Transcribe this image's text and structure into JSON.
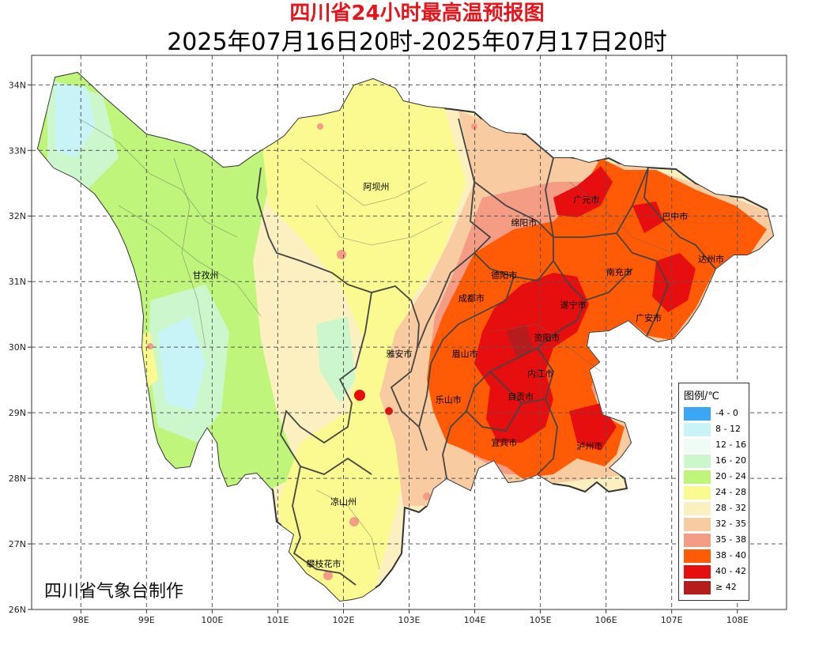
{
  "title": "四川省24小时最高温预报图",
  "subtitle": "2025年07月16日20时-2025年07月17日20时",
  "credit": "四川省气象台制作",
  "axes": {
    "x_ticks": [
      {
        "value": 98,
        "label": "98E"
      },
      {
        "value": 99,
        "label": "99E"
      },
      {
        "value": 100,
        "label": "100E"
      },
      {
        "value": 101,
        "label": "101E"
      },
      {
        "value": 102,
        "label": "102E"
      },
      {
        "value": 103,
        "label": "103E"
      },
      {
        "value": 104,
        "label": "104E"
      },
      {
        "value": 105,
        "label": "105E"
      },
      {
        "value": 106,
        "label": "106E"
      },
      {
        "value": 107,
        "label": "107E"
      },
      {
        "value": 108,
        "label": "108E"
      }
    ],
    "y_ticks": [
      {
        "value": 34,
        "label": "34N"
      },
      {
        "value": 33,
        "label": "33N"
      },
      {
        "value": 32,
        "label": "32N"
      },
      {
        "value": 31,
        "label": "31N"
      },
      {
        "value": 30,
        "label": "30N"
      },
      {
        "value": 29,
        "label": "29N"
      },
      {
        "value": 28,
        "label": "28N"
      },
      {
        "value": 27,
        "label": "27N"
      },
      {
        "value": 26,
        "label": "26N"
      }
    ],
    "lon_range": [
      97.25,
      108.75
    ],
    "lat_range": [
      26,
      34.45
    ],
    "grid": true
  },
  "legend": {
    "title": "图例/℃",
    "position": "bottom-right",
    "items": [
      {
        "label": "-4 - 0",
        "color": "#3ba6f5"
      },
      {
        "label": "8 - 12",
        "color": "#c8f4f8"
      },
      {
        "label": "12 - 16",
        "color": "#eefcf3"
      },
      {
        "label": "16 - 20",
        "color": "#ccf7cc"
      },
      {
        "label": "20 - 24",
        "color": "#bef57a"
      },
      {
        "label": "24 - 28",
        "color": "#fafa90"
      },
      {
        "label": "28 - 32",
        "color": "#fcf0c0"
      },
      {
        "label": "32 - 35",
        "color": "#f8cba0"
      },
      {
        "label": "35 - 38",
        "color": "#f59d84"
      },
      {
        "label": "38 - 40",
        "color": "#ff5a05"
      },
      {
        "label": "40 - 42",
        "color": "#e60e0e"
      },
      {
        "label": "≥ 42",
        "color": "#b71c1c"
      }
    ]
  },
  "cities": [
    {
      "name": "阿坝州",
      "lon": 102.5,
      "lat": 32.4
    },
    {
      "name": "甘孜州",
      "lon": 99.9,
      "lat": 31.05
    },
    {
      "name": "广元市",
      "lon": 105.7,
      "lat": 32.2
    },
    {
      "name": "巴中市",
      "lon": 107.05,
      "lat": 31.95
    },
    {
      "name": "绵阳市",
      "lon": 104.75,
      "lat": 31.85
    },
    {
      "name": "达州市",
      "lon": 107.6,
      "lat": 31.3
    },
    {
      "name": "德阳市",
      "lon": 104.45,
      "lat": 31.05
    },
    {
      "name": "南充市",
      "lon": 106.2,
      "lat": 31.1
    },
    {
      "name": "成都市",
      "lon": 103.95,
      "lat": 30.7
    },
    {
      "name": "遂宁市",
      "lon": 105.5,
      "lat": 30.6
    },
    {
      "name": "广安市",
      "lon": 106.65,
      "lat": 30.4
    },
    {
      "name": "资阳市",
      "lon": 105.1,
      "lat": 30.1
    },
    {
      "name": "雅安市",
      "lon": 102.85,
      "lat": 29.85
    },
    {
      "name": "眉山市",
      "lon": 103.85,
      "lat": 29.85
    },
    {
      "name": "内江市",
      "lon": 105.0,
      "lat": 29.55
    },
    {
      "name": "自贡市",
      "lon": 104.7,
      "lat": 29.2
    },
    {
      "name": "乐山市",
      "lon": 103.6,
      "lat": 29.15
    },
    {
      "name": "宜宾市",
      "lon": 104.45,
      "lat": 28.5
    },
    {
      "name": "泸州市",
      "lon": 105.75,
      "lat": 28.45
    },
    {
      "name": "凉山州",
      "lon": 102.0,
      "lat": 27.6
    },
    {
      "name": "攀枝花市",
      "lon": 101.7,
      "lat": 26.65
    }
  ]
}
